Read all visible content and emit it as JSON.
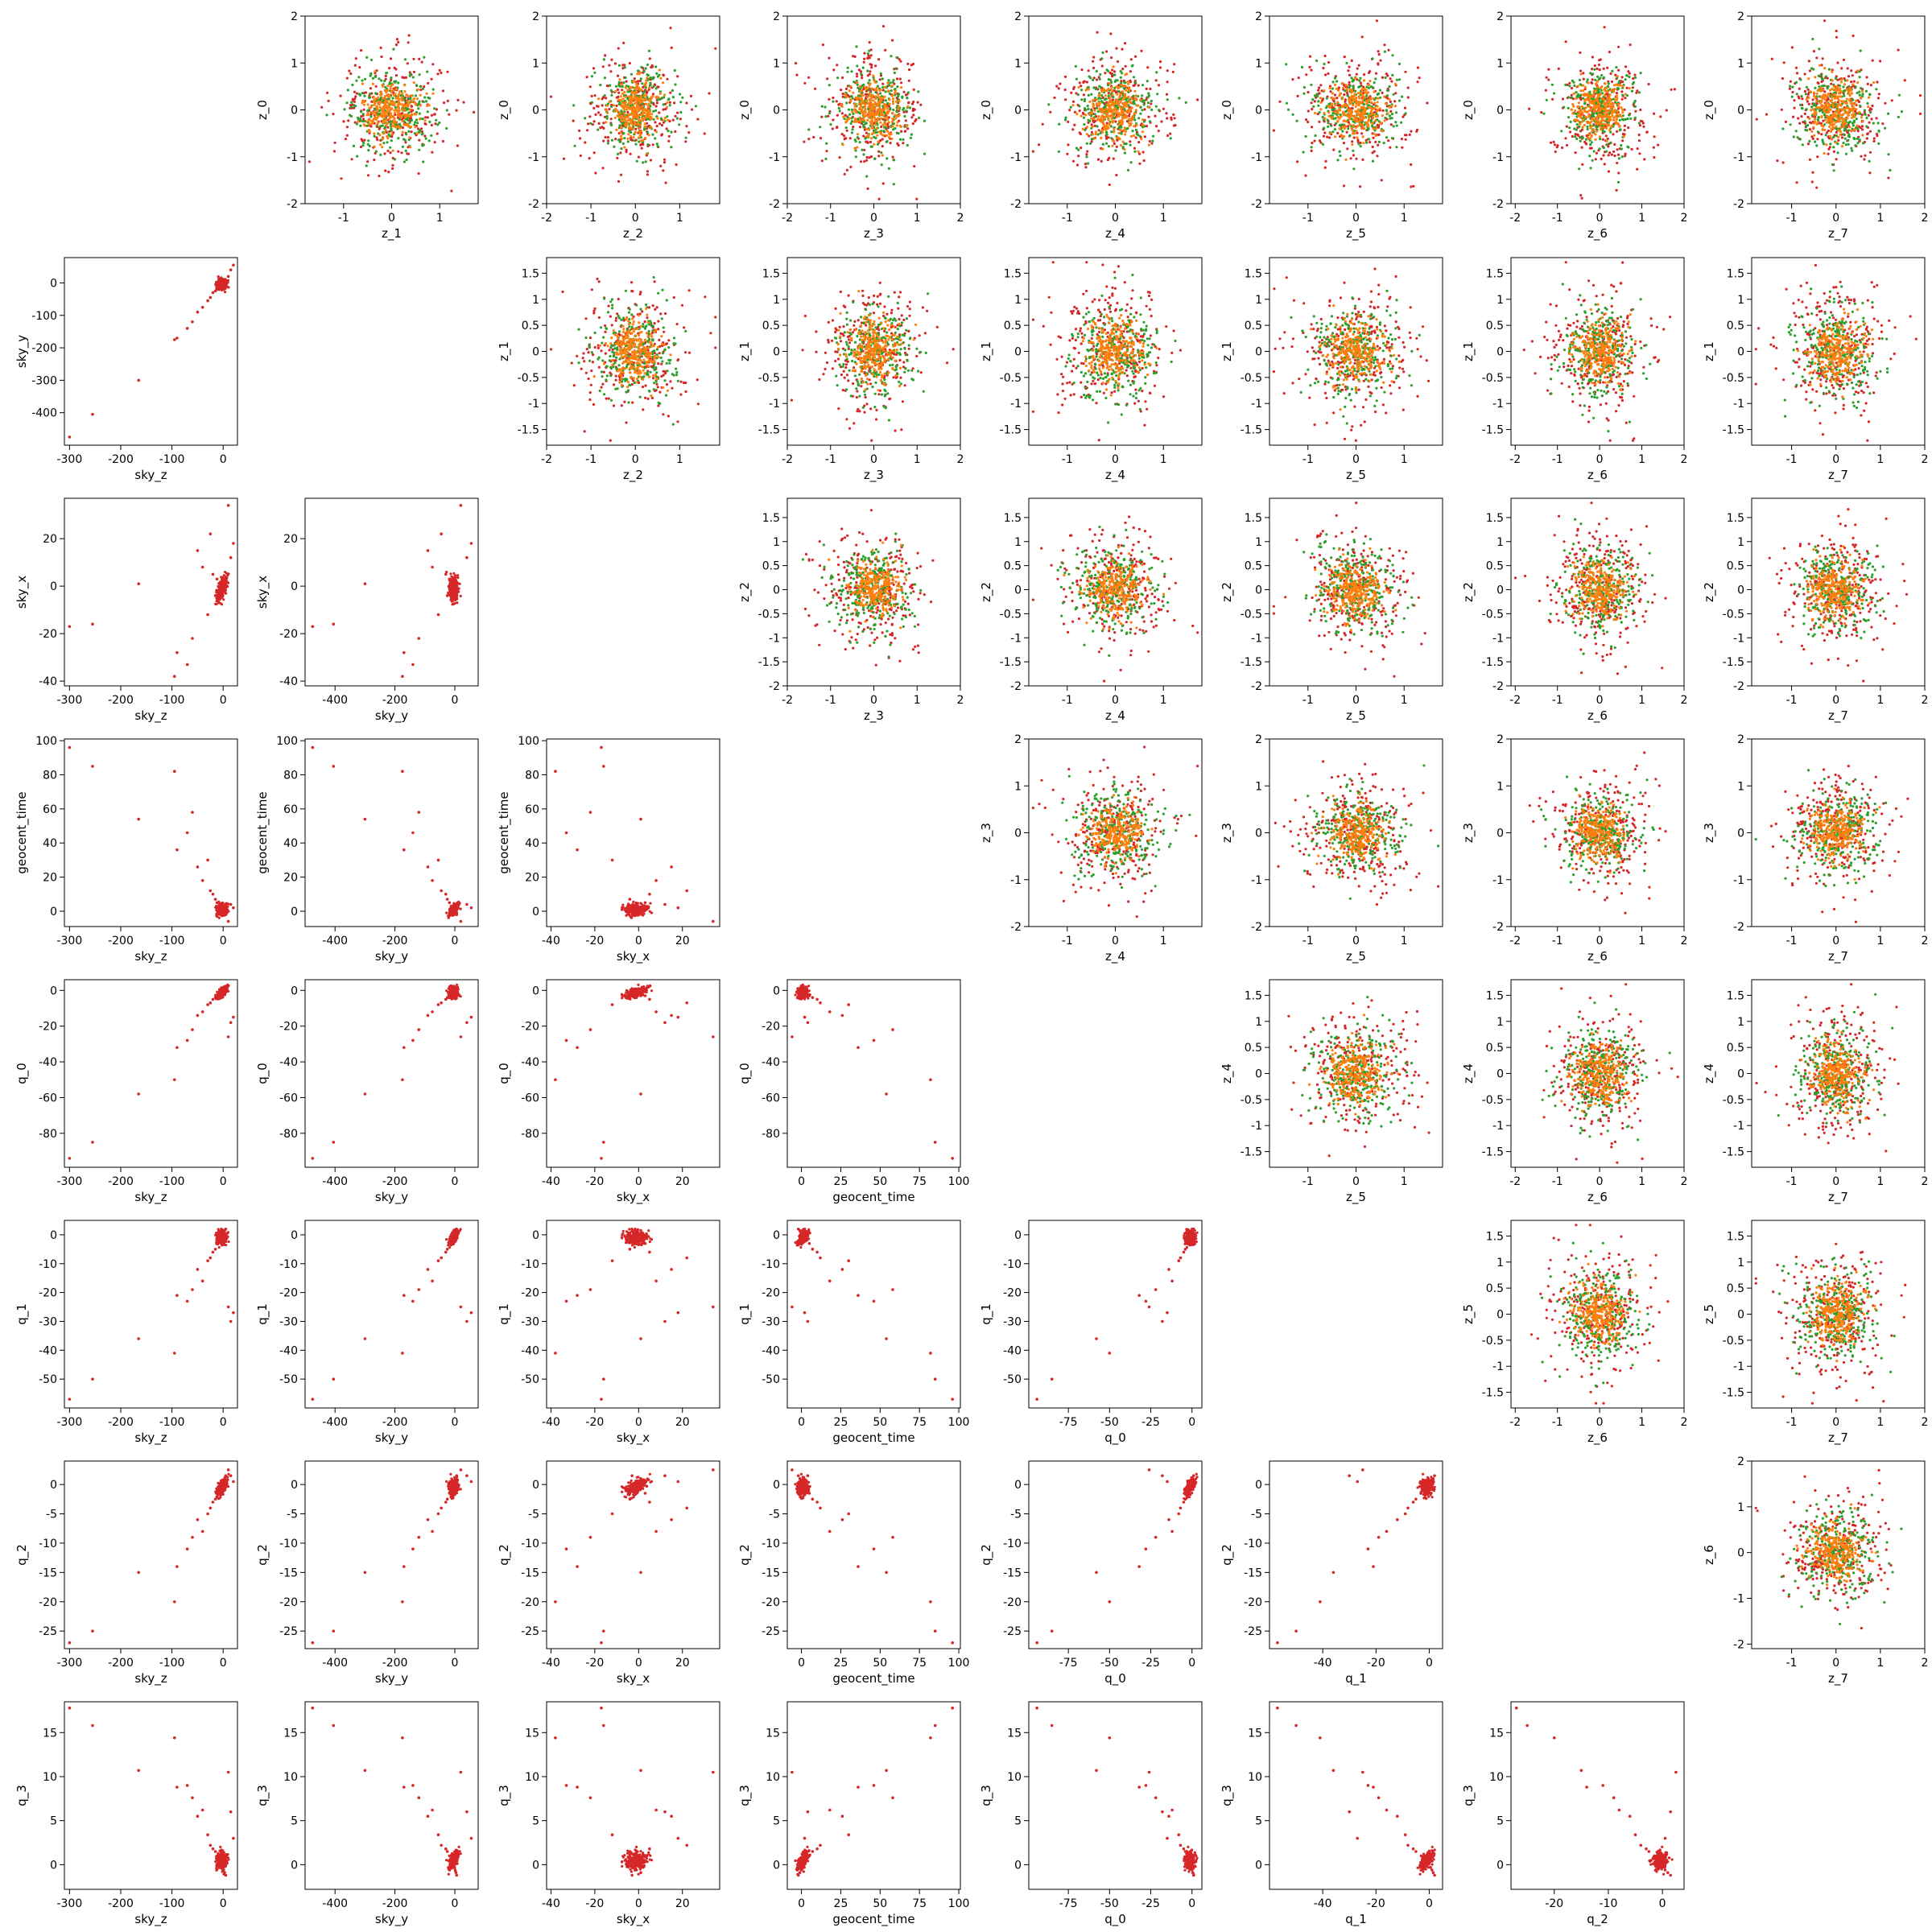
{
  "chart_data": {
    "type": "scatter",
    "layout": "lower-and-upper-triangle-corner-plot",
    "grid": false,
    "legend": "none",
    "colors": {
      "red": "#d62728",
      "green": "#2ca02c",
      "orange": "#ff7f0e"
    },
    "lower_triangle": {
      "variables": [
        "sky_z",
        "sky_y",
        "sky_x",
        "geocent_time",
        "q_0",
        "q_1",
        "q_2",
        "q_3"
      ],
      "ranges": {
        "sky_z": [
          -310,
          28
        ],
        "sky_y": [
          -500,
          78
        ],
        "sky_x": [
          -42,
          37
        ],
        "geocent_time": [
          -9,
          101
        ],
        "q_0": [
          -99,
          6
        ],
        "q_1": [
          -60,
          5
        ],
        "q_2": [
          -28,
          4
        ],
        "q_3": [
          -2.8,
          18.5
        ]
      },
      "ticks": {
        "sky_z": [
          -300,
          -200,
          -100,
          0
        ],
        "sky_y": [
          -400,
          -200,
          0
        ],
        "sky_x": [
          -40,
          -20,
          0,
          20
        ],
        "geocent_time": [
          0,
          25,
          50,
          75,
          100
        ],
        "q_0": [
          -75,
          -50,
          -25,
          0
        ],
        "q_1": [
          -40,
          -20,
          0
        ],
        "q_2": [
          -20,
          -10,
          0
        ],
        "q_y_ticks": {
          "sky_y": [
            -400,
            -300,
            -200,
            -100,
            0
          ],
          "sky_x": [
            -40,
            -20,
            0,
            20
          ],
          "geocent_time": [
            0,
            20,
            40,
            60,
            80,
            100
          ],
          "q_0": [
            -80,
            -60,
            -40,
            -20,
            0
          ],
          "q_1": [
            -50,
            -40,
            -30,
            -20,
            -10,
            0
          ],
          "q_2": [
            -25,
            -20,
            -15,
            -10,
            -5,
            0
          ],
          "q_3": [
            0,
            5,
            10,
            15
          ]
        }
      },
      "series": [
        {
          "color": "red",
          "points": [
            [
              -300,
              -475,
              -17,
              96,
              -94,
              -57,
              -27,
              17.8
            ],
            [
              -255,
              -405,
              -16,
              85,
              -85,
              -50,
              -25,
              15.8
            ],
            [
              -165,
              -300,
              1,
              54,
              -58,
              -36,
              -15,
              10.7
            ],
            [
              -95,
              -175,
              -38,
              82,
              -50,
              -41,
              -20,
              14.4
            ],
            [
              -90,
              -170,
              -28,
              36,
              -32,
              -21,
              -14,
              8.8
            ],
            [
              -70,
              -140,
              -33,
              46,
              -28,
              -23,
              -11,
              9.0
            ],
            [
              -60,
              -120,
              -22,
              58,
              -22,
              -19,
              -9,
              7.6
            ],
            [
              -50,
              -90,
              15,
              26,
              -14,
              -12,
              -6,
              5.5
            ],
            [
              -40,
              -75,
              8,
              18,
              -12,
              -16,
              -8,
              6.2
            ],
            [
              -30,
              -55,
              -12,
              30,
              -8,
              -9,
              -5,
              3.4
            ],
            [
              -25,
              -45,
              22,
              12,
              -7,
              -8,
              -4,
              2.2
            ],
            [
              -20,
              -30,
              5,
              10,
              -5,
              -6,
              -3,
              1.8
            ],
            [
              -15,
              -25,
              -4,
              7,
              -4,
              -5,
              -2.5,
              1.5
            ],
            [
              -12,
              -18,
              3,
              5,
              -3,
              -3,
              -1.5,
              1.0
            ],
            [
              -8,
              -12,
              -2,
              3,
              -2,
              -2,
              -1,
              0.6
            ],
            [
              -5,
              -8,
              1,
              2,
              -1,
              -1.5,
              -0.5,
              0.3
            ],
            [
              -3,
              -5,
              0,
              1,
              -0.8,
              -1,
              -0.3,
              0.1
            ],
            [
              -1,
              -2,
              2,
              0.5,
              -0.5,
              0.5,
              0,
              -0.3
            ],
            [
              1,
              1,
              -1,
              0,
              0,
              1,
              0.5,
              -0.6
            ],
            [
              3,
              4,
              1,
              -1,
              0.5,
              1.5,
              1,
              -0.9
            ],
            [
              5,
              6,
              -3,
              -2,
              1,
              2,
              1.5,
              -1.2
            ],
            [
              10,
              20,
              34,
              -6,
              -26,
              -25,
              2.5,
              10.5
            ],
            [
              15,
              40,
              12,
              4,
              -18,
              -30,
              1.5,
              6.0
            ],
            [
              20,
              55,
              18,
              2,
              -15,
              -27,
              0.5,
              3.0
            ]
          ]
        }
      ]
    },
    "upper_triangle": {
      "variables": [
        "z_0",
        "z_1",
        "z_2",
        "z_3",
        "z_4",
        "z_5",
        "z_6",
        "z_7"
      ],
      "distribution": "approximately standard normal cloud centred at 0",
      "ranges": {
        "z_0": [
          -2.0,
          2.0
        ],
        "z_1": [
          -1.8,
          1.8
        ],
        "z_2": [
          -2.0,
          1.9
        ],
        "z_3": [
          -2.0,
          2.0
        ],
        "z_4": [
          -1.8,
          1.8
        ],
        "z_5": [
          -1.8,
          1.8
        ],
        "z_6": [
          -2.1,
          2.0
        ],
        "z_7": [
          -1.9,
          2.0
        ]
      },
      "ticks": {
        "z_0": [
          -2,
          -1,
          0,
          1,
          2
        ],
        "z_1": [
          -1.5,
          -1.0,
          -0.5,
          0.0,
          0.5,
          1.0,
          1.5
        ],
        "z_2": [
          -2.0,
          -1.5,
          -1.0,
          -0.5,
          0.0,
          0.5,
          1.0,
          1.5
        ],
        "z_3": [
          -2,
          -1,
          0,
          1,
          2
        ],
        "z_4": [
          -1.5,
          -1.0,
          -0.5,
          0.0,
          0.5,
          1.0,
          1.5
        ],
        "z_5": [
          -1.5,
          -1.0,
          -0.5,
          0.0,
          0.5,
          1.0,
          1.5
        ],
        "z_6": [
          -2,
          -1,
          0,
          1,
          2
        ],
        "z_x_ticks": {
          "z_1": [
            -1,
            0,
            1
          ],
          "z_2": [
            -2,
            -1,
            0,
            1
          ],
          "z_3": [
            -2,
            -1,
            0,
            1,
            2
          ],
          "z_4": [
            -1,
            0,
            1
          ],
          "z_5": [
            -1,
            0,
            1
          ],
          "z_6": [
            -2,
            -1,
            0,
            1,
            2
          ],
          "z_7": [
            -1,
            0,
            1,
            2
          ]
        }
      },
      "series": [
        {
          "color": "red",
          "stddev": 0.6
        },
        {
          "color": "green",
          "stddev": 0.45
        },
        {
          "color": "orange",
          "stddev": 0.3
        }
      ]
    }
  }
}
